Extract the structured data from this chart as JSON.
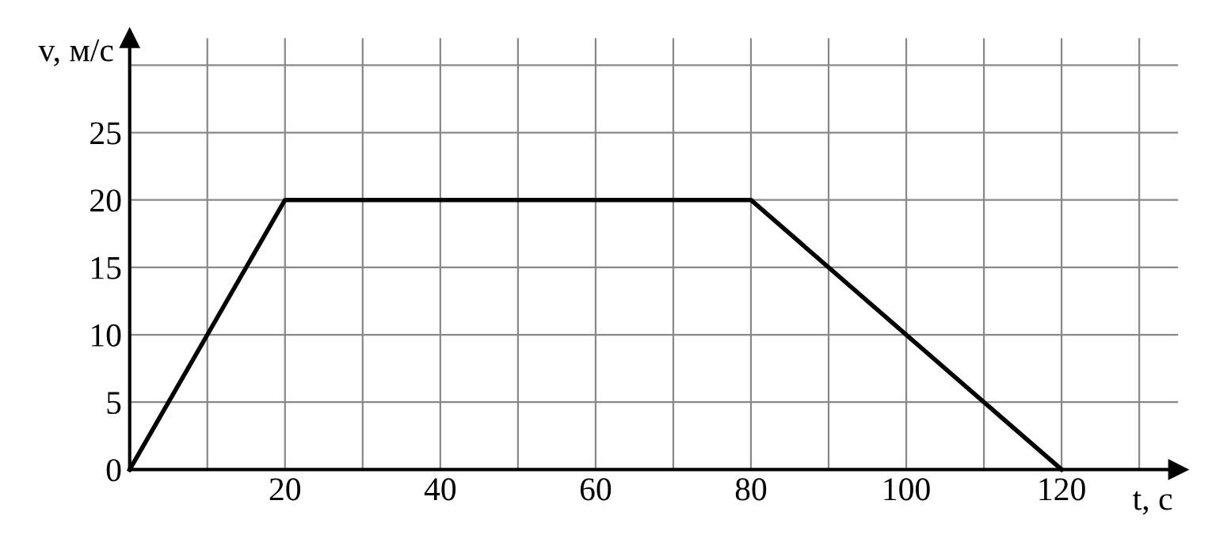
{
  "chart_data": {
    "type": "line",
    "xlabel": "t, с",
    "ylabel": "v, м/с",
    "x": [
      0,
      20,
      80,
      120
    ],
    "series": [
      {
        "color": "#000000",
        "values": [
          0,
          20,
          20,
          0
        ]
      }
    ],
    "xlim": [
      0,
      135
    ],
    "ylim": [
      0,
      32
    ],
    "xticks": [
      {
        "value": 10,
        "label": null
      },
      20,
      {
        "value": 30,
        "label": null
      },
      40,
      {
        "value": 50,
        "label": null
      },
      60,
      {
        "value": 70,
        "label": null
      },
      80,
      {
        "value": 90,
        "label": null
      },
      100,
      {
        "value": 110,
        "label": null
      },
      120,
      {
        "value": 130,
        "label": null
      }
    ],
    "yticks": [
      0,
      5,
      10,
      15,
      20,
      25,
      {
        "value": 30,
        "label": null
      }
    ],
    "grid": true,
    "marker": "none",
    "line_style": "solid"
  }
}
